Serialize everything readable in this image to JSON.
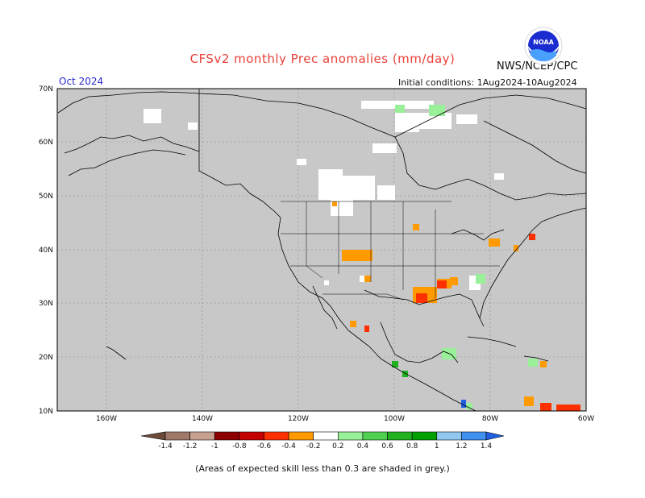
{
  "header": {
    "title": "CFSv2 monthly Prec anomalies (mm/day)",
    "agency": "NWS/NCEP/CPC",
    "logo_text": "NOAA",
    "month": "Oct 2024",
    "initial_conditions": "Initial conditions: 1Aug2024-10Aug2024"
  },
  "map": {
    "lat_labels": [
      "70N",
      "60N",
      "50N",
      "40N",
      "30N",
      "20N",
      "10N"
    ],
    "lon_labels": [
      "160W",
      "140W",
      "120W",
      "100W",
      "80W",
      "60W"
    ],
    "background_color": "#c8c8c8",
    "coastline_color": "#000000"
  },
  "colorbar": {
    "labels": [
      "-1.4",
      "-1.2",
      "-1",
      "-0.8",
      "-0.6",
      "-0.4",
      "-0.2",
      "0.2",
      "0.4",
      "0.6",
      "0.8",
      "1",
      "1.2",
      "1.4"
    ],
    "colors": [
      "#6b4a3a",
      "#a0786a",
      "#c8a090",
      "#8b0000",
      "#c40000",
      "#ff3000",
      "#ff9a00",
      "#ffffff",
      "#98f098",
      "#50d050",
      "#20b020",
      "#00a000",
      "#90c8f0",
      "#4090f0",
      "#2060e0"
    ]
  },
  "footnote": "(Areas of expected skill less than 0.3 are shaded in grey.)"
}
